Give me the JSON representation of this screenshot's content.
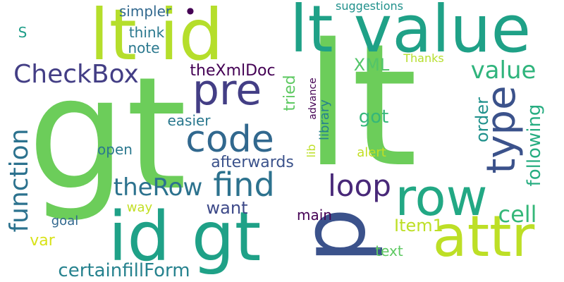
{
  "words": [
    {
      "id": "gt-1",
      "text": "gt",
      "color": "#6ccd5a",
      "orient": "h"
    },
    {
      "id": "lt-1",
      "text": "lt",
      "color": "#6ccd5a",
      "orient": "h"
    },
    {
      "id": "lt-id",
      "text": "lt id",
      "color": "#b5de2b",
      "orient": "h"
    },
    {
      "id": "lt-value",
      "text": "lt value",
      "color": "#1fa187",
      "orient": "h"
    },
    {
      "id": "id-gt",
      "text": "id gt",
      "color": "#1fa187",
      "orient": "h"
    },
    {
      "id": "p",
      "text": "p",
      "color": "#3b528b",
      "orient": "v-left"
    },
    {
      "id": "attr",
      "text": "attr",
      "color": "#bddf26",
      "orient": "h"
    },
    {
      "id": "row",
      "text": "row",
      "color": "#22a884",
      "orient": "h"
    },
    {
      "id": "pre",
      "text": "pre",
      "color": "#433e85",
      "orient": "h"
    },
    {
      "id": "code",
      "text": "code",
      "color": "#31688e",
      "orient": "h"
    },
    {
      "id": "type",
      "text": "type",
      "color": "#3b528b",
      "orient": "v"
    },
    {
      "id": "find",
      "text": "find",
      "color": "#2c728e",
      "orient": "h"
    },
    {
      "id": "loop",
      "text": "loop",
      "color": "#482878",
      "orient": "h"
    },
    {
      "id": "checkbox",
      "text": "CheckBox",
      "color": "#433e85",
      "orient": "h"
    },
    {
      "id": "function",
      "text": "function",
      "color": "#2c728e",
      "orient": "v"
    },
    {
      "id": "therow",
      "text": "theRow",
      "color": "#2c728e",
      "orient": "h"
    },
    {
      "id": "value",
      "text": "value",
      "color": "#2fb47c",
      "orient": "h"
    },
    {
      "id": "cell",
      "text": "cell",
      "color": "#35b779",
      "orient": "h"
    },
    {
      "id": "certainfillform",
      "text": "certainfillForm",
      "color": "#26828e",
      "orient": "h"
    },
    {
      "id": "following",
      "text": "following",
      "color": "#27ad81",
      "orient": "v"
    },
    {
      "id": "order",
      "text": "order",
      "color": "#21918c",
      "orient": "v"
    },
    {
      "id": "item1",
      "text": "Item1",
      "color": "#bddf26",
      "orient": "h"
    },
    {
      "id": "want",
      "text": "want",
      "color": "#3e4a89",
      "orient": "h"
    },
    {
      "id": "got",
      "text": "got",
      "color": "#35b779",
      "orient": "h"
    },
    {
      "id": "xml",
      "text": "XML",
      "color": "#52c569",
      "orient": "h"
    },
    {
      "id": "thexmldoc",
      "text": "theXmlDoc",
      "color": "#440154",
      "orient": "h"
    },
    {
      "id": "afterwards",
      "text": "afterwards",
      "color": "#3b528b",
      "orient": "h"
    },
    {
      "id": "tried",
      "text": "tried",
      "color": "#5ec962",
      "orient": "v"
    },
    {
      "id": "var",
      "text": "var",
      "color": "#d8e219",
      "orient": "h"
    },
    {
      "id": "main",
      "text": "main",
      "color": "#440154",
      "orient": "h"
    },
    {
      "id": "text",
      "text": "text",
      "color": "#5ec962",
      "orient": "h"
    },
    {
      "id": "simpler",
      "text": "simpler",
      "color": "#31688e",
      "orient": "h"
    },
    {
      "id": "think",
      "text": "think",
      "color": "#2a788e",
      "orient": "h"
    },
    {
      "id": "note",
      "text": "note",
      "color": "#2a788e",
      "orient": "h"
    },
    {
      "id": "easier",
      "text": "easier",
      "color": "#2a788e",
      "orient": "h"
    },
    {
      "id": "open",
      "text": "open",
      "color": "#2a788e",
      "orient": "h"
    },
    {
      "id": "goal",
      "text": "goal",
      "color": "#31688e",
      "orient": "h"
    },
    {
      "id": "way",
      "text": "way",
      "color": "#c2df23",
      "orient": "h"
    },
    {
      "id": "alert",
      "text": "alert",
      "color": "#c2df23",
      "orient": "h"
    },
    {
      "id": "library",
      "text": "library",
      "color": "#26828e",
      "orient": "v"
    },
    {
      "id": "lib",
      "text": "lib",
      "color": "#bddf26",
      "orient": "v"
    },
    {
      "id": "advance",
      "text": "advance",
      "color": "#440154",
      "orient": "v"
    },
    {
      "id": "suggestions",
      "text": "suggestions",
      "color": "#21918c",
      "orient": "h"
    },
    {
      "id": "thanks",
      "text": "Thanks",
      "color": "#b5de2b",
      "orient": "h"
    },
    {
      "id": "s",
      "text": "S",
      "color": "#1f9e89",
      "orient": "h"
    },
    {
      "id": "dot",
      "text": "●",
      "color": "#440154",
      "orient": "h"
    }
  ]
}
